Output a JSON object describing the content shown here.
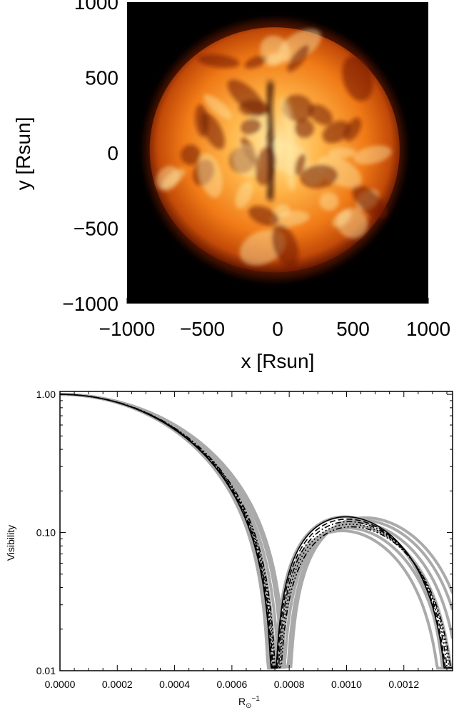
{
  "chart_data": [
    {
      "type": "image",
      "xlabel": "x [Rsun]",
      "ylabel": "y [Rsun]",
      "xlim": [
        -1000,
        1000
      ],
      "ylim": [
        -1000,
        1000
      ],
      "xticks": [
        -1000,
        -500,
        0,
        500,
        1000
      ],
      "yticks": [
        1000,
        500,
        0,
        -500,
        -1000
      ],
      "xtick_labels": [
        "−1000",
        "−500",
        "0",
        "500",
        "1000"
      ],
      "ytick_labels": [
        "1000",
        "500",
        "0",
        "−500",
        "−1000"
      ],
      "background_color": "#000000",
      "disk_colors": [
        "#ffe9a6",
        "#ffb64a",
        "#f07a16",
        "#c24a08",
        "#6e1a02"
      ],
      "disk_radius": 830
    },
    {
      "type": "line",
      "xlabel": "R",
      "xlabel_sub": "⊙",
      "xlabel_sup": "−1",
      "ylabel": "Visibility",
      "xlim": [
        0,
        0.00137
      ],
      "ylim": [
        0.01,
        1.05
      ],
      "yscale": "log",
      "xticks": [
        0,
        0.0002,
        0.0004,
        0.0006,
        0.0008,
        0.001,
        0.0012
      ],
      "xtick_labels": [
        "0.0000",
        "0.0002",
        "0.0004",
        "0.0006",
        "0.0008",
        "0.0010",
        "0.0012"
      ],
      "yticks": [
        1,
        0.1,
        0.01
      ],
      "ytick_labels": [
        "1.00",
        "0.10",
        "0.01"
      ],
      "grey_color": "#aaaaaa",
      "black_color": "#000000",
      "series": [
        {
          "style": "grey",
          "first_null": 0.000735,
          "second_lobe_peak": 0.103
        },
        {
          "style": "grey",
          "first_null": 0.000748,
          "second_lobe_peak": 0.108
        },
        {
          "style": "grey",
          "first_null": 0.00076,
          "second_lobe_peak": 0.113
        },
        {
          "style": "grey",
          "first_null": 0.000772,
          "second_lobe_peak": 0.118
        },
        {
          "style": "grey",
          "first_null": 0.000785,
          "second_lobe_peak": 0.123
        },
        {
          "style": "grey",
          "first_null": 0.000795,
          "second_lobe_peak": 0.128
        },
        {
          "style": "grey",
          "first_null": 0.000742,
          "second_lobe_peak": 0.13
        },
        {
          "style": "solid",
          "first_null": 0.000745,
          "second_lobe_peak": 0.13
        },
        {
          "style": "dash",
          "first_null": 0.000748,
          "second_lobe_peak": 0.125
        },
        {
          "style": "dashdot",
          "first_null": 0.000752,
          "second_lobe_peak": 0.12
        },
        {
          "style": "dot",
          "first_null": 0.000756,
          "second_lobe_peak": 0.115
        },
        {
          "style": "dashdotdot",
          "first_null": 0.00076,
          "second_lobe_peak": 0.11
        }
      ]
    }
  ]
}
